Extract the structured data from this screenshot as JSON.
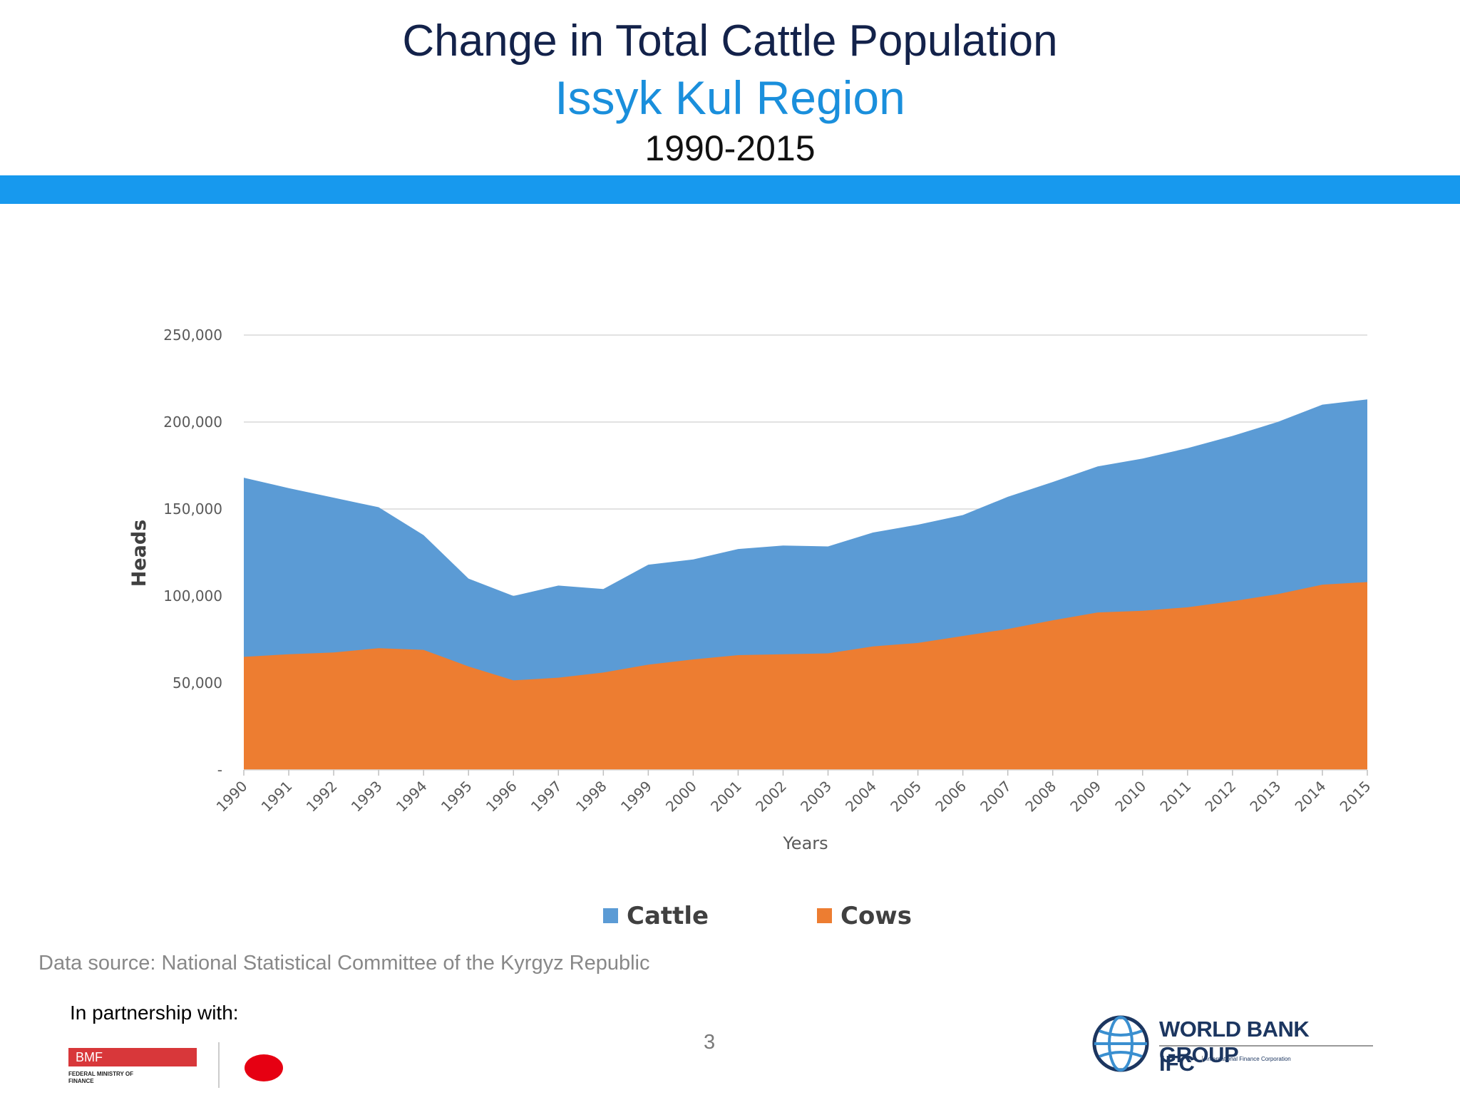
{
  "header": {
    "title": "Change in Total Cattle Population",
    "subtitle": "Issyk Kul Region",
    "period": "1990-2015"
  },
  "footer": {
    "source": "Data source: National Statistical Committee of the Kyrgyz Republic",
    "partnership": "In partnership with:",
    "page_number": "3",
    "bmf": {
      "name": "BMF",
      "full_name": "FEDERAL MINISTRY OF FINANCE"
    },
    "world_bank": {
      "name": "WORLD BANK GROUP",
      "ifc": "IFC",
      "ifc_full": "International Finance Corporation"
    }
  },
  "colors": {
    "accent_band": "#1799ee",
    "cattle": "#5b9bd5",
    "cows": "#ed7d31",
    "title": "#13224a",
    "subtitle": "#1a8fdc"
  },
  "chart_data": {
    "type": "area",
    "xlabel": "Years",
    "ylabel": "Heads",
    "ylim": [
      0,
      250000
    ],
    "yticks": [
      0,
      50000,
      100000,
      150000,
      200000,
      250000
    ],
    "ytick_labels": [
      "-",
      "50,000",
      "100,000",
      "150,000",
      "200,000",
      "250,000"
    ],
    "grid": true,
    "legend_position": "bottom",
    "categories": [
      "1990",
      "1991",
      "1992",
      "1993",
      "1994",
      "1995",
      "1996",
      "1997",
      "1998",
      "1999",
      "2000",
      "2001",
      "2002",
      "2003",
      "2004",
      "2005",
      "2006",
      "2007",
      "2008",
      "2009",
      "2010",
      "2011",
      "2012",
      "2013",
      "2014",
      "2015"
    ],
    "series": [
      {
        "name": "Cattle",
        "color": "#5b9bd5",
        "values": [
          168000,
          162000,
          156500,
          151000,
          135000,
          110000,
          100000,
          106000,
          104000,
          118000,
          121000,
          127000,
          129000,
          128500,
          136500,
          141000,
          146500,
          157000,
          165500,
          174500,
          179000,
          185000,
          192000,
          200000,
          210000,
          213000
        ]
      },
      {
        "name": "Cows",
        "color": "#ed7d31",
        "values": [
          65000,
          66500,
          67500,
          70000,
          69000,
          59500,
          51500,
          53000,
          56000,
          60500,
          63500,
          66000,
          66500,
          67000,
          71000,
          73000,
          77000,
          81000,
          86000,
          90500,
          91500,
          93500,
          97000,
          101000,
          106500,
          108000
        ]
      }
    ]
  }
}
